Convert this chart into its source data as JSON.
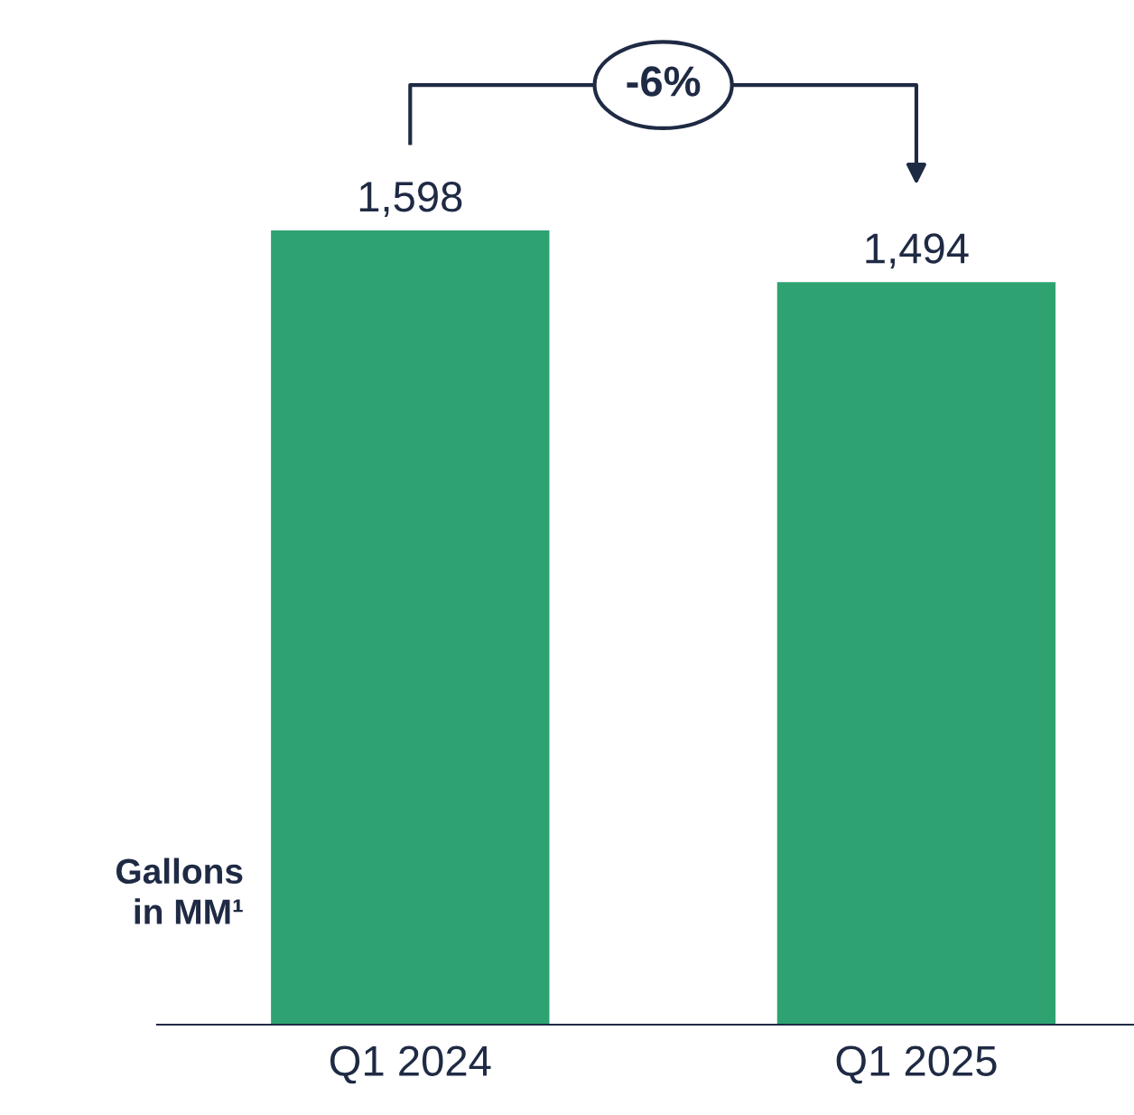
{
  "chart_data": {
    "type": "bar",
    "ylabel": "Gallons\nin MM¹",
    "categories": [
      "Q1 2024",
      "Q1 2025"
    ],
    "values": [
      1598,
      1494
    ],
    "color": "#2ea371",
    "value_labels": [
      "1,598",
      "1,494"
    ],
    "grid": false,
    "legend": false,
    "annotations": [
      "-6%"
    ]
  }
}
